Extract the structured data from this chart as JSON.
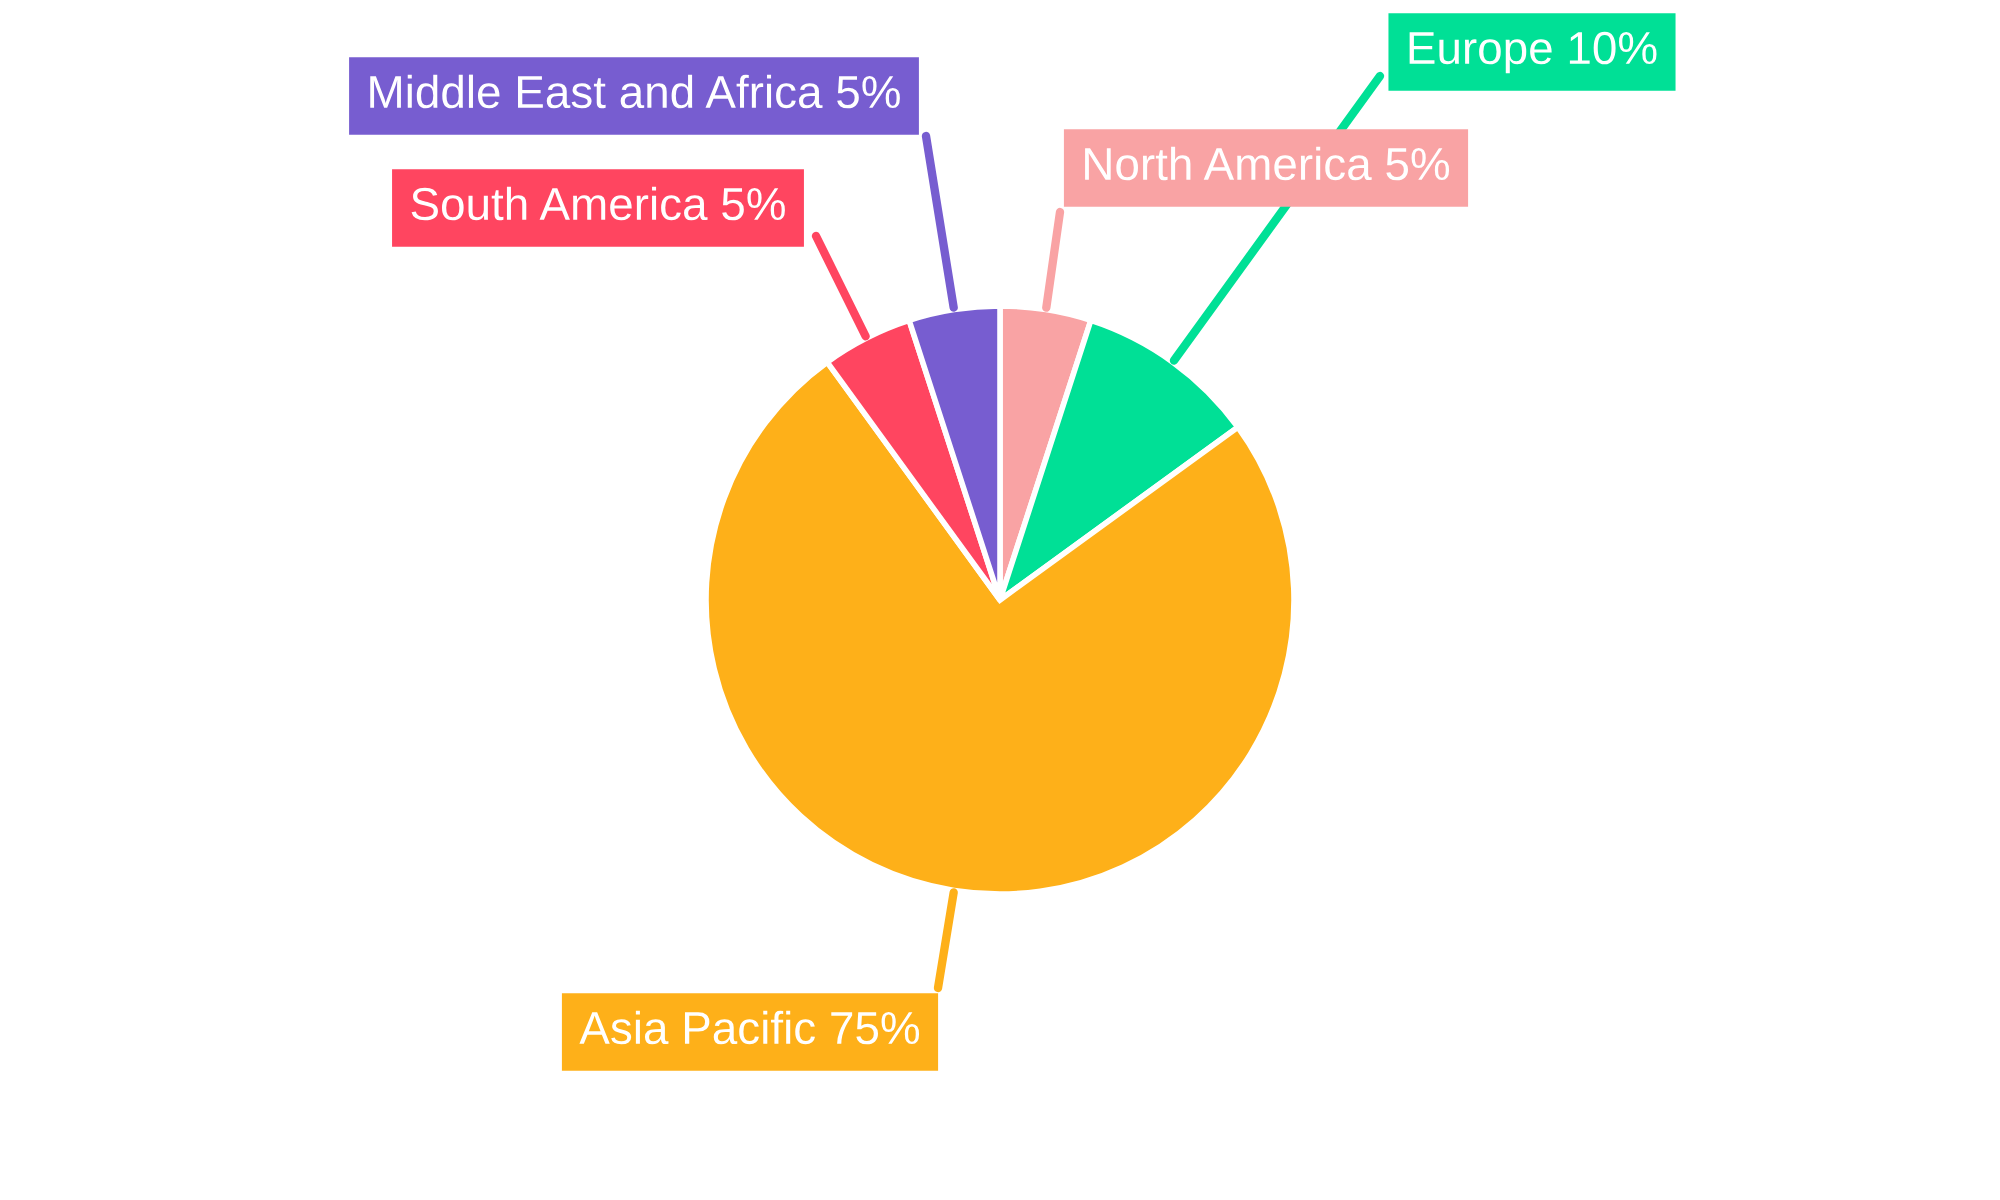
{
  "chart_data": {
    "type": "pie",
    "categories": [
      "North America",
      "Europe",
      "Asia Pacific",
      "South America",
      "Middle East and Africa"
    ],
    "values": [
      5,
      10,
      75,
      5,
      5
    ],
    "value_labels": [
      "5%",
      "10%",
      "75%",
      "5%",
      "5%"
    ],
    "colors": [
      "#f9a3a4",
      "#00e096",
      "#feb019",
      "#ff4560",
      "#775dd0"
    ]
  }
}
